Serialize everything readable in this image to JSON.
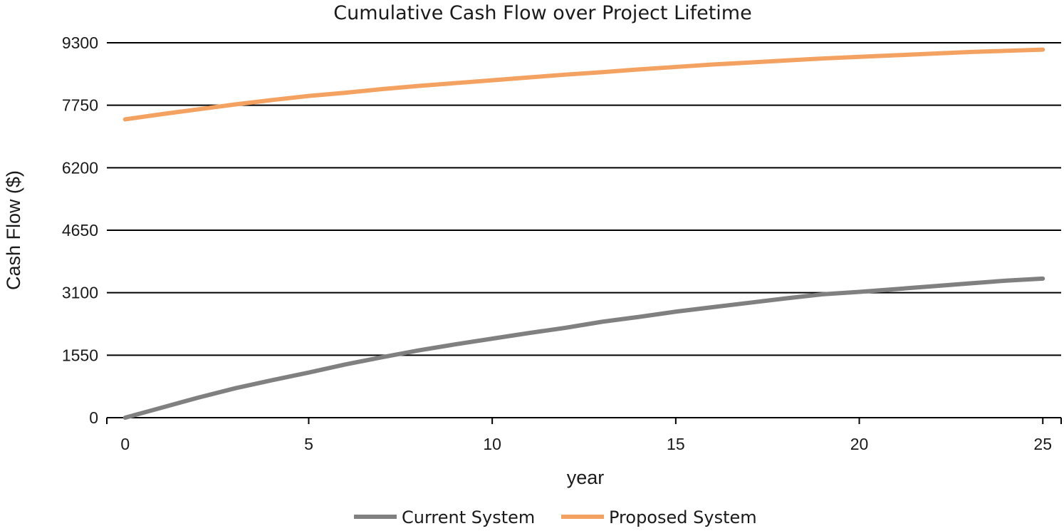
{
  "chart_data": {
    "type": "line",
    "title": "Cumulative Cash Flow over Project Lifetime",
    "xlabel": "year",
    "ylabel": "Cash Flow ($)",
    "xlim": [
      -0.5,
      25.5
    ],
    "ylim": [
      0,
      9300
    ],
    "xticks": [
      0,
      5,
      10,
      15,
      20,
      25
    ],
    "yticks": [
      0,
      1550,
      3100,
      4650,
      6200,
      7750,
      9300
    ],
    "grid": "horizontal",
    "legend": "bottom",
    "x": [
      0,
      1,
      2,
      3,
      4,
      5,
      6,
      7,
      8,
      9,
      10,
      11,
      12,
      13,
      14,
      15,
      16,
      17,
      18,
      19,
      20,
      21,
      22,
      23,
      24,
      25
    ],
    "series": [
      {
        "name": "Current System",
        "color": "#808080",
        "values": [
          0,
          250,
          500,
          730,
          930,
          1120,
          1320,
          1500,
          1670,
          1820,
          1960,
          2100,
          2230,
          2380,
          2500,
          2630,
          2740,
          2850,
          2960,
          3060,
          3120,
          3190,
          3260,
          3330,
          3400,
          3450
        ]
      },
      {
        "name": "Proposed System",
        "color": "#F4A261",
        "values": [
          7400,
          7530,
          7650,
          7770,
          7880,
          7980,
          8060,
          8150,
          8230,
          8300,
          8370,
          8440,
          8510,
          8570,
          8640,
          8700,
          8760,
          8810,
          8860,
          8910,
          8950,
          8990,
          9030,
          9070,
          9100,
          9130
        ]
      }
    ]
  }
}
